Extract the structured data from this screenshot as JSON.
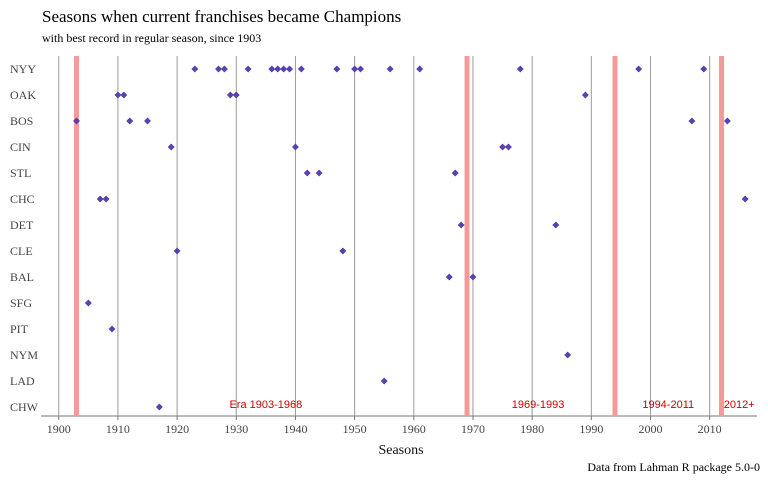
{
  "chart_data": {
    "type": "scatter",
    "title": "Seasons when current franchises became Champions",
    "subtitle": "with best record in regular season, since 1903",
    "xlabel": "Seasons",
    "ylabel": "",
    "caption": "Data from Lahman R package 5.0-0",
    "xlim": [
      1897,
      2018
    ],
    "x_ticks": [
      1900,
      1910,
      1920,
      1930,
      1940,
      1950,
      1960,
      1970,
      1980,
      1990,
      2000,
      2010
    ],
    "categories": [
      "NYY",
      "OAK",
      "BOS",
      "CIN",
      "STL",
      "CHC",
      "DET",
      "CLE",
      "BAL",
      "SFG",
      "PIT",
      "NYM",
      "LAD",
      "CHW"
    ],
    "era_boundaries": [
      1903,
      1969,
      1994,
      2012
    ],
    "era_labels": [
      {
        "label": "Era 1903-1968",
        "x": 1935
      },
      {
        "label": "1969-1993",
        "x": 1981
      },
      {
        "label": "1994-2011",
        "x": 2003
      },
      {
        "label": "2012+",
        "x": 2015
      }
    ],
    "grid": "vertical",
    "colors": {
      "points": "#5b3fb5",
      "era_lines": "#f59a9a",
      "era_labels": "#cc0000",
      "grid": "#9a9a9a"
    },
    "series": [
      {
        "team": "NYY",
        "seasons": [
          1923,
          1927,
          1928,
          1932,
          1936,
          1937,
          1938,
          1939,
          1941,
          1947,
          1950,
          1951,
          1956,
          1961,
          1978,
          1998,
          2009
        ]
      },
      {
        "team": "OAK",
        "seasons": [
          1910,
          1911,
          1929,
          1930,
          1989
        ]
      },
      {
        "team": "BOS",
        "seasons": [
          1903,
          1912,
          1915,
          2007,
          2013
        ]
      },
      {
        "team": "CIN",
        "seasons": [
          1919,
          1940,
          1975,
          1976
        ]
      },
      {
        "team": "STL",
        "seasons": [
          1942,
          1944,
          1967
        ]
      },
      {
        "team": "CHC",
        "seasons": [
          1907,
          1908,
          2016
        ]
      },
      {
        "team": "DET",
        "seasons": [
          1968,
          1984
        ]
      },
      {
        "team": "CLE",
        "seasons": [
          1920,
          1948
        ]
      },
      {
        "team": "BAL",
        "seasons": [
          1966,
          1970
        ]
      },
      {
        "team": "SFG",
        "seasons": [
          1905
        ]
      },
      {
        "team": "PIT",
        "seasons": [
          1909
        ]
      },
      {
        "team": "NYM",
        "seasons": [
          1986
        ]
      },
      {
        "team": "LAD",
        "seasons": [
          1955
        ]
      },
      {
        "team": "CHW",
        "seasons": [
          1917
        ]
      }
    ]
  }
}
